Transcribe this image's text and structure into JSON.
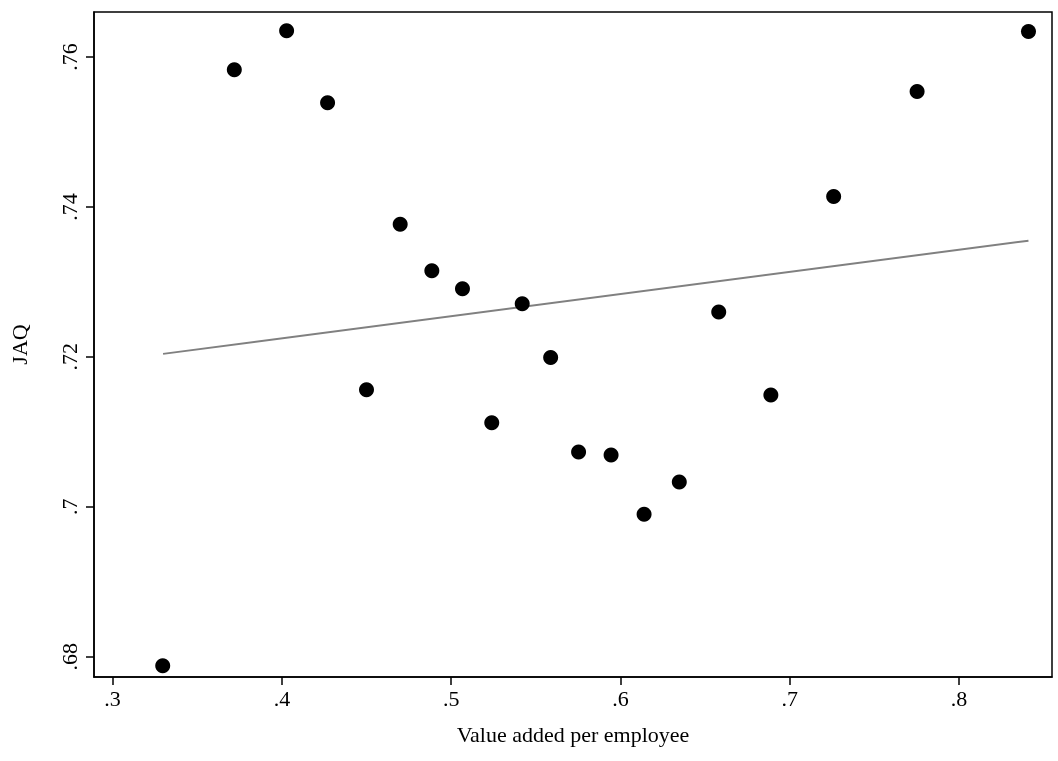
{
  "chart_data": {
    "type": "scatter",
    "xlabel": "Value added per employee",
    "ylabel": "JAQ",
    "marker": "circle",
    "xlim": [
      0.289,
      0.855
    ],
    "ylim": [
      0.6773,
      0.766
    ],
    "xticks": [
      {
        "value": 0.3,
        "label": ".3"
      },
      {
        "value": 0.4,
        "label": ".4"
      },
      {
        "value": 0.5,
        "label": ".5"
      },
      {
        "value": 0.6,
        "label": ".6"
      },
      {
        "value": 0.7,
        "label": ".7"
      },
      {
        "value": 0.8,
        "label": ".8"
      }
    ],
    "yticks": [
      {
        "value": 0.68,
        "label": ".68"
      },
      {
        "value": 0.7,
        "label": ".7"
      },
      {
        "value": 0.72,
        "label": ".72"
      },
      {
        "value": 0.74,
        "label": ".74"
      },
      {
        "value": 0.76,
        "label": ".76"
      }
    ],
    "series": [
      {
        "color": "#000000",
        "x": [
          0.3296,
          0.3719,
          0.4028,
          0.427,
          0.45,
          0.4699,
          0.4886,
          0.5067,
          0.524,
          0.542,
          0.5588,
          0.5753,
          0.5945,
          0.614,
          0.6348,
          0.6581,
          0.6889,
          0.726,
          0.7753,
          0.8411
        ],
        "values": [
          0.6788,
          0.7583,
          0.7635,
          0.7539,
          0.7156,
          0.7377,
          0.7315,
          0.7291,
          0.7112,
          0.7271,
          0.7199,
          0.7073,
          0.7069,
          0.699,
          0.7033,
          0.726,
          0.7149,
          0.7414,
          0.7554,
          0.7634
        ]
      },
      {
        "type": "line",
        "color": "#808080",
        "marker": "none",
        "x": [
          0.3298,
          0.8411
        ],
        "values": [
          0.7204,
          0.7355
        ]
      }
    ]
  }
}
